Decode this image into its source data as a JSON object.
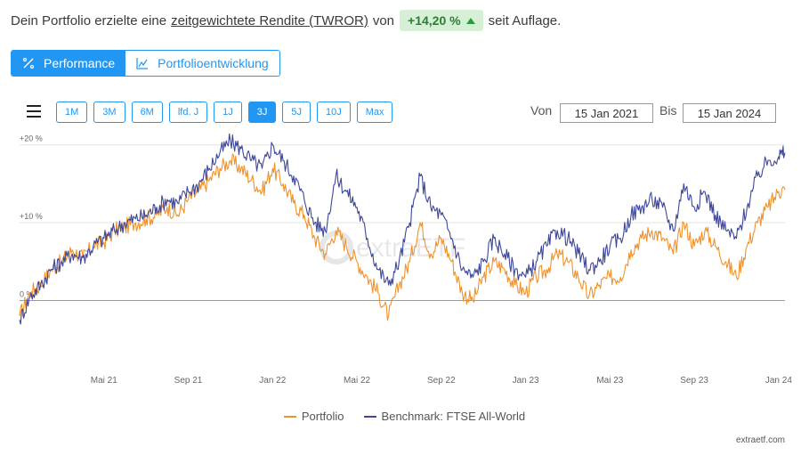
{
  "headline": {
    "prefix": "Dein Portfolio erzielte eine",
    "link": "zeitgewichtete Rendite (TWROR)",
    "mid": "von",
    "value": "+14,20 %",
    "suffix": "seit Auflage."
  },
  "tabs": [
    {
      "label": "Performance",
      "icon": "percent-icon",
      "active": true
    },
    {
      "label": "Portfolioentwicklung",
      "icon": "area-chart-icon",
      "active": false
    }
  ],
  "ranges": [
    "1M",
    "3M",
    "6M",
    "lfd. J",
    "1J",
    "3J",
    "5J",
    "10J",
    "Max"
  ],
  "active_range": "3J",
  "date_range": {
    "from_label": "Von",
    "from": "15 Jan 2021",
    "to_label": "Bis",
    "to": "15 Jan 2024"
  },
  "colors": {
    "portfolio": "#f0922b",
    "benchmark": "#3e4799",
    "accent": "#2196f3",
    "badge_bg": "#d6f0d6",
    "badge_text": "#2e7d32"
  },
  "watermark": "extraETF",
  "footer": "extraetf.com",
  "chart_data": {
    "type": "line",
    "x_ticks": [
      "Mai 21",
      "Sep 21",
      "Jan 22",
      "Mai 22",
      "Sep 22",
      "Jan 23",
      "Mai 23",
      "Sep 23",
      "Jan 24"
    ],
    "y_ticks": [
      {
        "value": 20,
        "label": "+20 %"
      },
      {
        "value": 10,
        "label": "+10 %"
      },
      {
        "value": 0,
        "label": "0 %"
      }
    ],
    "ylim": [
      -6,
      21
    ],
    "xlim": [
      0,
      36.3
    ],
    "series": [
      {
        "name": "Portfolio",
        "color": "#f0922b",
        "values": [
          [
            0,
            -2.0
          ],
          [
            0.5,
            1.0
          ],
          [
            1,
            2.0
          ],
          [
            1.5,
            4.0
          ],
          [
            2,
            5.0
          ],
          [
            2.5,
            6.5
          ],
          [
            3,
            5.5
          ],
          [
            3.5,
            7.0
          ],
          [
            4,
            7.5
          ],
          [
            4.5,
            9.0
          ],
          [
            5,
            9.5
          ],
          [
            5.5,
            10.0
          ],
          [
            6,
            10.5
          ],
          [
            6.5,
            11.0
          ],
          [
            7,
            12.0
          ],
          [
            7.5,
            11.0
          ],
          [
            8,
            13.0
          ],
          [
            8.5,
            14.0
          ],
          [
            9,
            15.5
          ],
          [
            9.5,
            17.0
          ],
          [
            10,
            18.0
          ],
          [
            10.5,
            17.0
          ],
          [
            11,
            15.5
          ],
          [
            11.5,
            14.0
          ],
          [
            12,
            17.0
          ],
          [
            12.5,
            15.0
          ],
          [
            13,
            12.5
          ],
          [
            13.5,
            11.0
          ],
          [
            14,
            8.0
          ],
          [
            14.5,
            6.0
          ],
          [
            15,
            9.0
          ],
          [
            15.5,
            7.0
          ],
          [
            16,
            5.0
          ],
          [
            16.5,
            3.0
          ],
          [
            17,
            1.0
          ],
          [
            17.5,
            -2.0
          ],
          [
            18,
            2.0
          ],
          [
            18.5,
            5.0
          ],
          [
            19,
            10.0
          ],
          [
            19.5,
            6.0
          ],
          [
            20,
            8.0
          ],
          [
            20.5,
            5.0
          ],
          [
            21,
            1.0
          ],
          [
            21.5,
            0.0
          ],
          [
            22,
            3.0
          ],
          [
            22.5,
            5.0
          ],
          [
            23,
            4.0
          ],
          [
            23.5,
            2.0
          ],
          [
            24,
            1.0
          ],
          [
            24.5,
            3.0
          ],
          [
            25,
            4.0
          ],
          [
            25.5,
            6.0
          ],
          [
            26,
            5.0
          ],
          [
            26.5,
            3.0
          ],
          [
            27,
            0.5
          ],
          [
            27.5,
            2.0
          ],
          [
            28,
            3.0
          ],
          [
            28.5,
            3.0
          ],
          [
            29,
            6.5
          ],
          [
            29.5,
            8.0
          ],
          [
            30,
            9.0
          ],
          [
            30.5,
            8.0
          ],
          [
            31,
            6.0
          ],
          [
            31.5,
            10.0
          ],
          [
            32,
            7.0
          ],
          [
            32.5,
            9.0
          ],
          [
            33,
            7.0
          ],
          [
            33.5,
            5.0
          ],
          [
            34,
            3.0
          ],
          [
            34.5,
            7.0
          ],
          [
            35,
            10.0
          ],
          [
            35.5,
            12.0
          ],
          [
            36,
            14.0
          ],
          [
            36.3,
            14.2
          ]
        ]
      },
      {
        "name": "Benchmark: FTSE All-World",
        "color": "#3e4799",
        "values": [
          [
            0,
            -2.5
          ],
          [
            0.5,
            0.5
          ],
          [
            1,
            2.0
          ],
          [
            1.5,
            4.0
          ],
          [
            2,
            5.0
          ],
          [
            2.5,
            6.0
          ],
          [
            3,
            5.5
          ],
          [
            3.5,
            7.0
          ],
          [
            4,
            8.0
          ],
          [
            4.5,
            9.0
          ],
          [
            5,
            10.0
          ],
          [
            5.5,
            10.5
          ],
          [
            6,
            11.0
          ],
          [
            6.5,
            12.0
          ],
          [
            7,
            13.0
          ],
          [
            7.5,
            12.5
          ],
          [
            8,
            14.0
          ],
          [
            8.5,
            15.0
          ],
          [
            9,
            17.0
          ],
          [
            9.5,
            19.0
          ],
          [
            10,
            20.5
          ],
          [
            10.5,
            19.5
          ],
          [
            11,
            18.0
          ],
          [
            11.5,
            17.0
          ],
          [
            12,
            20.0
          ],
          [
            12.5,
            18.0
          ],
          [
            13,
            16.0
          ],
          [
            13.5,
            13.0
          ],
          [
            14,
            10.0
          ],
          [
            14.5,
            9.0
          ],
          [
            15,
            16.0
          ],
          [
            15.5,
            14.0
          ],
          [
            16,
            12.0
          ],
          [
            16.5,
            8.0
          ],
          [
            17,
            4.0
          ],
          [
            17.5,
            2.0
          ],
          [
            18,
            5.0
          ],
          [
            18.5,
            10.0
          ],
          [
            19,
            16.0
          ],
          [
            19.5,
            12.0
          ],
          [
            20,
            11.0
          ],
          [
            20.5,
            8.0
          ],
          [
            21,
            4.0
          ],
          [
            21.5,
            3.0
          ],
          [
            22,
            5.0
          ],
          [
            22.5,
            8.0
          ],
          [
            23,
            6.0
          ],
          [
            23.5,
            4.0
          ],
          [
            24,
            3.0
          ],
          [
            24.5,
            5.0
          ],
          [
            25,
            7.0
          ],
          [
            25.5,
            9.0
          ],
          [
            26,
            8.0
          ],
          [
            26.5,
            6.0
          ],
          [
            27,
            4.0
          ],
          [
            27.5,
            5.0
          ],
          [
            28,
            7.0
          ],
          [
            28.5,
            8.0
          ],
          [
            29,
            11.0
          ],
          [
            29.5,
            12.0
          ],
          [
            30,
            13.0
          ],
          [
            30.5,
            12.0
          ],
          [
            31,
            9.0
          ],
          [
            31.5,
            15.0
          ],
          [
            32,
            12.0
          ],
          [
            32.5,
            14.0
          ],
          [
            33,
            11.0
          ],
          [
            33.5,
            9.0
          ],
          [
            34,
            8.0
          ],
          [
            34.5,
            12.0
          ],
          [
            35,
            16.0
          ],
          [
            35.5,
            18.0
          ],
          [
            36,
            18.5
          ],
          [
            36.3,
            19.0
          ]
        ]
      }
    ]
  }
}
